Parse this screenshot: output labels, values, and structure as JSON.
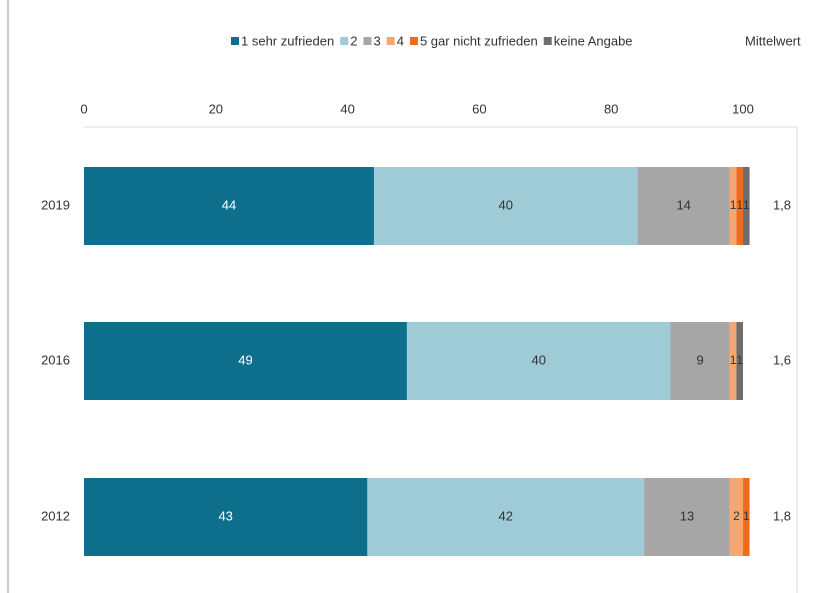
{
  "chart_data": {
    "type": "stacked_bar_horizontal",
    "categories": [
      "2019",
      "2016",
      "2012"
    ],
    "series": [
      {
        "name": "1 sehr zufrieden",
        "color": "#0e6f8c",
        "values": [
          44,
          49,
          43
        ]
      },
      {
        "name": "2",
        "color": "#9ecbd6",
        "values": [
          40,
          40,
          42
        ]
      },
      {
        "name": "3",
        "color": "#a6a6a6",
        "values": [
          14,
          9,
          13
        ]
      },
      {
        "name": "4",
        "color": "#f7a66f",
        "values": [
          1,
          1,
          2
        ]
      },
      {
        "name": "5 gar nicht zufrieden",
        "color": "#f26b1d",
        "values": [
          1,
          0,
          1
        ]
      },
      {
        "name": "keine Angabe",
        "color": "#6e6e6e",
        "values": [
          1,
          1,
          0
        ]
      }
    ],
    "mean_header": "Mittelwert",
    "mean_labels": [
      "1,8",
      "1,6",
      "1,8"
    ],
    "xlim": [
      0,
      100
    ],
    "xticks": [
      0,
      20,
      40,
      60,
      80,
      100
    ]
  }
}
